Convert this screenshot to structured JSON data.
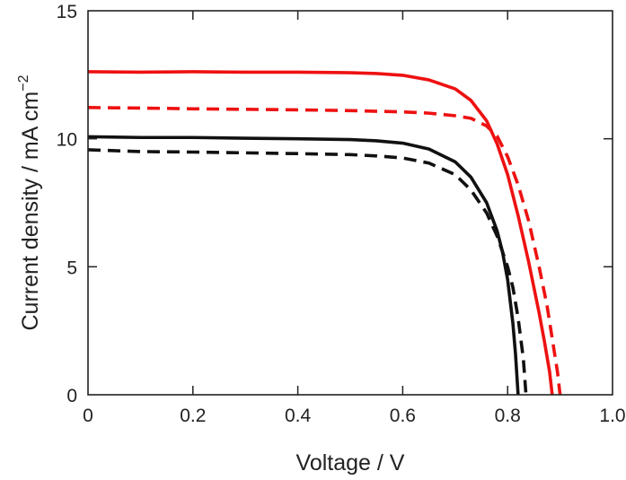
{
  "chart_data": {
    "type": "line",
    "title": "",
    "xlabel": "Voltage / V",
    "ylabel": "Current density / mA cm",
    "ylabel_superscript": "−2",
    "xlim": [
      0,
      1.0
    ],
    "ylim": [
      0,
      15
    ],
    "xticks": [
      0,
      0.2,
      0.4,
      0.6,
      0.8,
      1.0
    ],
    "xtick_labels": [
      "0",
      "0.2",
      "0.4",
      "0.6",
      "0.8",
      "1.0"
    ],
    "yticks": [
      0,
      5,
      10,
      15
    ],
    "ytick_labels": [
      "0",
      "5",
      "10",
      "15"
    ],
    "grid": false,
    "legend": "none",
    "series": [
      {
        "name": "red-solid",
        "color": "#ee1111",
        "style": "solid",
        "points": [
          [
            0,
            12.62
          ],
          [
            0.1,
            12.6
          ],
          [
            0.2,
            12.62
          ],
          [
            0.3,
            12.6
          ],
          [
            0.4,
            12.6
          ],
          [
            0.5,
            12.58
          ],
          [
            0.55,
            12.55
          ],
          [
            0.6,
            12.48
          ],
          [
            0.65,
            12.3
          ],
          [
            0.7,
            11.95
          ],
          [
            0.73,
            11.5
          ],
          [
            0.76,
            10.7
          ],
          [
            0.78,
            9.8
          ],
          [
            0.8,
            8.6
          ],
          [
            0.82,
            7.0
          ],
          [
            0.84,
            5.2
          ],
          [
            0.86,
            3.2
          ],
          [
            0.87,
            2.1
          ],
          [
            0.88,
            0.9
          ],
          [
            0.885,
            0
          ]
        ]
      },
      {
        "name": "red-dashed",
        "color": "#ee1111",
        "style": "dashed",
        "points": [
          [
            0,
            11.22
          ],
          [
            0.1,
            11.2
          ],
          [
            0.2,
            11.17
          ],
          [
            0.3,
            11.15
          ],
          [
            0.4,
            11.13
          ],
          [
            0.5,
            11.1
          ],
          [
            0.6,
            11.05
          ],
          [
            0.65,
            11.0
          ],
          [
            0.7,
            10.9
          ],
          [
            0.73,
            10.8
          ],
          [
            0.76,
            10.5
          ],
          [
            0.78,
            10.1
          ],
          [
            0.8,
            9.3
          ],
          [
            0.82,
            8.2
          ],
          [
            0.84,
            6.8
          ],
          [
            0.86,
            5.0
          ],
          [
            0.875,
            3.5
          ],
          [
            0.885,
            2.2
          ],
          [
            0.895,
            0.9
          ],
          [
            0.9,
            0
          ]
        ]
      },
      {
        "name": "black-solid",
        "color": "#111111",
        "style": "solid",
        "points": [
          [
            0,
            10.08
          ],
          [
            0.1,
            10.05
          ],
          [
            0.2,
            10.05
          ],
          [
            0.3,
            10.02
          ],
          [
            0.4,
            10.0
          ],
          [
            0.5,
            9.97
          ],
          [
            0.55,
            9.92
          ],
          [
            0.6,
            9.83
          ],
          [
            0.65,
            9.6
          ],
          [
            0.7,
            9.1
          ],
          [
            0.73,
            8.5
          ],
          [
            0.76,
            7.5
          ],
          [
            0.78,
            6.4
          ],
          [
            0.79,
            5.6
          ],
          [
            0.8,
            4.5
          ],
          [
            0.81,
            2.8
          ],
          [
            0.815,
            1.6
          ],
          [
            0.82,
            0
          ]
        ]
      },
      {
        "name": "black-dashed",
        "color": "#111111",
        "style": "dashed",
        "points": [
          [
            0,
            9.57
          ],
          [
            0.1,
            9.5
          ],
          [
            0.2,
            9.48
          ],
          [
            0.3,
            9.45
          ],
          [
            0.4,
            9.42
          ],
          [
            0.5,
            9.38
          ],
          [
            0.55,
            9.33
          ],
          [
            0.6,
            9.25
          ],
          [
            0.65,
            9.05
          ],
          [
            0.7,
            8.6
          ],
          [
            0.73,
            8.0
          ],
          [
            0.76,
            7.1
          ],
          [
            0.78,
            6.2
          ],
          [
            0.8,
            5.0
          ],
          [
            0.81,
            4.2
          ],
          [
            0.82,
            3.0
          ],
          [
            0.83,
            1.4
          ],
          [
            0.835,
            0
          ]
        ]
      }
    ]
  }
}
